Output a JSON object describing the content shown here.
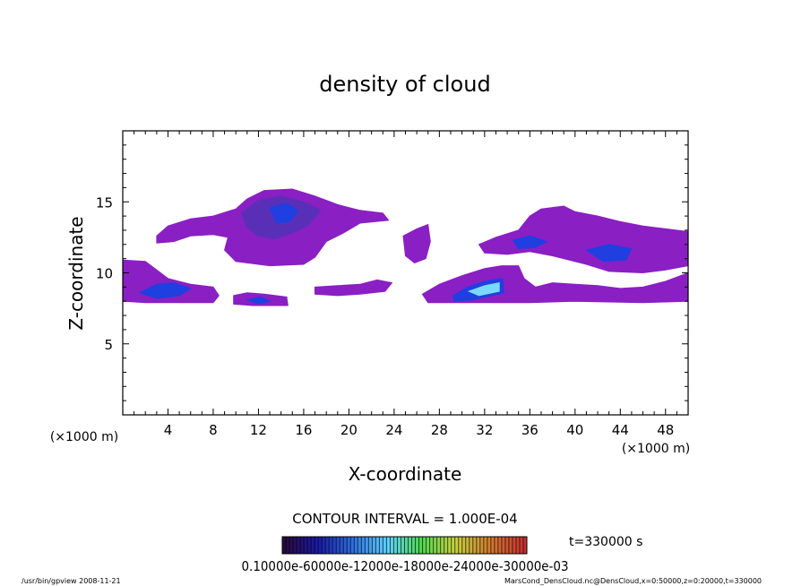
{
  "chart_data": {
    "type": "heatmap",
    "title": "density of cloud",
    "xlabel": "X-coordinate",
    "ylabel": "Z-coordinate",
    "x_unit": "(×1000 m)",
    "y_unit": "(×1000 m)",
    "xlim": [
      0,
      50
    ],
    "ylim": [
      0,
      20
    ],
    "x_ticks": [
      "4",
      "8",
      "12",
      "16",
      "20",
      "24",
      "28",
      "32",
      "36",
      "40",
      "44",
      "48"
    ],
    "y_ticks": [
      "5",
      "10",
      "15"
    ],
    "contour_interval": "CONTOUR INTERVAL = 1.000E-04",
    "time_label": "t=330000 s",
    "colorbar_labels": "0.10000e-60000e-12000e-18000e-24000e-30000e-03",
    "colorbar_colors": [
      "#2a0a3c",
      "#1a1aa8",
      "#2f6fe0",
      "#5fd0ff",
      "#4fd84f",
      "#c8d040",
      "#d07a30",
      "#c83030"
    ],
    "cloud_colors": {
      "low": "#8a1fc4",
      "mid": "#5a2fb8",
      "high": "#1f3fe0",
      "peak": "#7ad8ff"
    },
    "cloud_regions": [
      {
        "name": "upper-left-cloud",
        "level": "low",
        "points": [
          [
            3,
            12.6
          ],
          [
            4,
            13.3
          ],
          [
            6,
            13.8
          ],
          [
            8,
            14.0
          ],
          [
            10,
            14.5
          ],
          [
            11,
            15.2
          ],
          [
            12.5,
            15.8
          ],
          [
            15,
            15.9
          ],
          [
            17,
            15.4
          ],
          [
            19,
            14.8
          ],
          [
            21,
            14.4
          ],
          [
            23,
            14.2
          ],
          [
            23.5,
            13.7
          ],
          [
            21,
            13.5
          ],
          [
            19.5,
            12.8
          ],
          [
            18,
            12.2
          ],
          [
            17,
            11.1
          ],
          [
            16,
            10.6
          ],
          [
            13,
            10.5
          ],
          [
            10,
            10.8
          ],
          [
            9,
            11.6
          ],
          [
            9.3,
            12.5
          ],
          [
            8,
            12.7
          ],
          [
            6,
            12.6
          ],
          [
            4.5,
            12.2
          ],
          [
            3,
            12.1
          ]
        ]
      },
      {
        "name": "upper-left-core",
        "level": "mid",
        "points": [
          [
            10.5,
            14.2
          ],
          [
            12,
            15.1
          ],
          [
            14,
            15.4
          ],
          [
            16,
            15.0
          ],
          [
            17.5,
            14.4
          ],
          [
            16.5,
            13.4
          ],
          [
            15,
            12.8
          ],
          [
            13.5,
            12.4
          ],
          [
            12,
            12.6
          ],
          [
            11,
            13.2
          ]
        ]
      },
      {
        "name": "upper-left-core-inner",
        "level": "high",
        "points": [
          [
            13,
            14.6
          ],
          [
            14.5,
            14.9
          ],
          [
            15.5,
            14.4
          ],
          [
            14.8,
            13.6
          ],
          [
            13.6,
            13.5
          ]
        ]
      },
      {
        "name": "left-lower-band",
        "level": "low",
        "points": [
          [
            0,
            10.9
          ],
          [
            2,
            10.8
          ],
          [
            3,
            10.2
          ],
          [
            4,
            9.6
          ],
          [
            6,
            9.2
          ],
          [
            8,
            9.0
          ],
          [
            8.5,
            8.4
          ],
          [
            8,
            7.9
          ],
          [
            5,
            7.9
          ],
          [
            2,
            7.9
          ],
          [
            0,
            8.0
          ]
        ]
      },
      {
        "name": "left-lower-core",
        "level": "high",
        "points": [
          [
            1.5,
            8.6
          ],
          [
            3,
            9.2
          ],
          [
            4.5,
            9.3
          ],
          [
            6,
            8.9
          ],
          [
            5,
            8.4
          ],
          [
            3,
            8.2
          ]
        ]
      },
      {
        "name": "small-cloud-12",
        "level": "low",
        "points": [
          [
            9.8,
            8.4
          ],
          [
            11,
            8.6
          ],
          [
            12.5,
            8.5
          ],
          [
            14.5,
            8.3
          ],
          [
            14.6,
            7.7
          ],
          [
            11.5,
            7.7
          ],
          [
            9.8,
            7.8
          ]
        ]
      },
      {
        "name": "small-core-12",
        "level": "high",
        "points": [
          [
            11,
            8.1
          ],
          [
            12.2,
            8.3
          ],
          [
            13,
            8.0
          ],
          [
            12,
            7.8
          ]
        ]
      },
      {
        "name": "mid-thin-band",
        "level": "low",
        "points": [
          [
            17,
            9.0
          ],
          [
            19,
            9.1
          ],
          [
            21,
            9.2
          ],
          [
            22.5,
            9.5
          ],
          [
            23.8,
            9.3
          ],
          [
            23.2,
            8.7
          ],
          [
            21,
            8.5
          ],
          [
            19,
            8.4
          ],
          [
            17,
            8.5
          ]
        ]
      },
      {
        "name": "cloud-26",
        "level": "low",
        "points": [
          [
            24.8,
            12.6
          ],
          [
            26,
            13.1
          ],
          [
            27,
            13.4
          ],
          [
            27.2,
            12.2
          ],
          [
            26.8,
            11.0
          ],
          [
            25.8,
            10.7
          ],
          [
            25,
            11.2
          ]
        ]
      },
      {
        "name": "right-lower-band",
        "level": "low",
        "points": [
          [
            26.5,
            8.5
          ],
          [
            28,
            9.2
          ],
          [
            30,
            9.8
          ],
          [
            32,
            10.3
          ],
          [
            33.5,
            10.5
          ],
          [
            35,
            10.5
          ],
          [
            35.5,
            9.6
          ],
          [
            36.5,
            9.0
          ],
          [
            38,
            9.3
          ],
          [
            40,
            9.2
          ],
          [
            42,
            9.1
          ],
          [
            44,
            8.9
          ],
          [
            46,
            9.0
          ],
          [
            48,
            9.4
          ],
          [
            50,
            10.0
          ],
          [
            50,
            8.0
          ],
          [
            46,
            7.9
          ],
          [
            40,
            8.0
          ],
          [
            36,
            7.9
          ],
          [
            30,
            7.9
          ],
          [
            27,
            7.9
          ]
        ]
      },
      {
        "name": "right-lower-core",
        "level": "high",
        "points": [
          [
            29.2,
            8.4
          ],
          [
            30.5,
            9.0
          ],
          [
            32,
            9.4
          ],
          [
            33.6,
            9.6
          ],
          [
            33.7,
            8.6
          ],
          [
            31,
            8.1
          ],
          [
            29.3,
            8.0
          ]
        ]
      },
      {
        "name": "right-lower-peak",
        "level": "peak",
        "points": [
          [
            30.6,
            8.7
          ],
          [
            32,
            9.1
          ],
          [
            33.3,
            9.3
          ],
          [
            33.3,
            8.7
          ],
          [
            31.5,
            8.4
          ]
        ]
      },
      {
        "name": "upper-right-cloud",
        "level": "low",
        "points": [
          [
            31.5,
            12.0
          ],
          [
            33,
            12.5
          ],
          [
            35,
            13.0
          ],
          [
            36,
            14.0
          ],
          [
            37,
            14.5
          ],
          [
            39,
            14.7
          ],
          [
            40,
            14.3
          ],
          [
            42,
            14.0
          ],
          [
            44,
            13.6
          ],
          [
            46,
            13.3
          ],
          [
            48,
            13.1
          ],
          [
            50,
            12.9
          ],
          [
            50,
            10.5
          ],
          [
            48,
            10.2
          ],
          [
            46,
            10.0
          ],
          [
            43,
            10.1
          ],
          [
            41,
            10.6
          ],
          [
            38,
            11.2
          ],
          [
            36,
            11.5
          ],
          [
            34,
            11.3
          ],
          [
            32,
            11.4
          ]
        ]
      },
      {
        "name": "upper-right-core",
        "level": "high",
        "points": [
          [
            34.5,
            12.3
          ],
          [
            36,
            12.6
          ],
          [
            37.5,
            12.2
          ],
          [
            36.5,
            11.8
          ],
          [
            35,
            11.7
          ]
        ]
      },
      {
        "name": "upper-right-core2",
        "level": "high",
        "points": [
          [
            41,
            11.6
          ],
          [
            43,
            12.0
          ],
          [
            45,
            11.7
          ],
          [
            44.5,
            10.9
          ],
          [
            42.5,
            10.8
          ]
        ]
      }
    ]
  },
  "footer": {
    "left": "/usr/bin/gpview   2008-11-21",
    "right": "MarsCond_DensCloud.nc@DensCloud,x=0:50000,z=0:20000,t=330000"
  }
}
